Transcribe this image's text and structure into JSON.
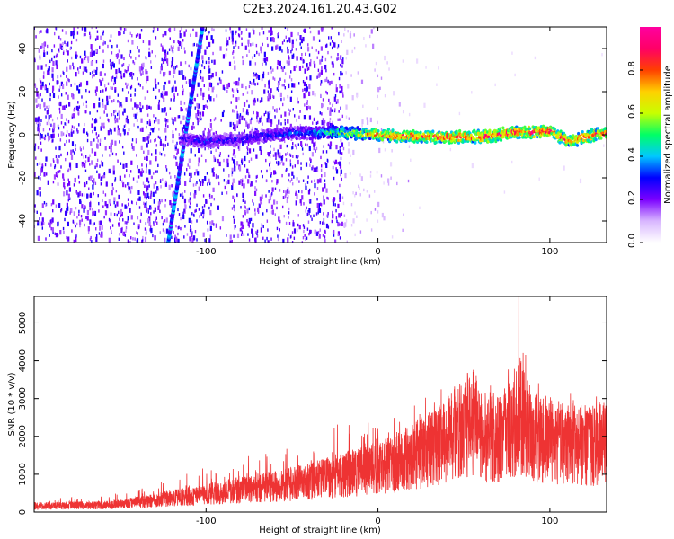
{
  "title": "C2E3.2024.161.20.43.G02",
  "chart_data": [
    {
      "type": "heatmap",
      "xlabel": "Height of straight line (km)",
      "ylabel": "Frequency (Hz)",
      "xlim": [
        -200,
        133
      ],
      "ylim": [
        -50,
        50
      ],
      "xticks": [
        -100,
        0,
        100
      ],
      "yticks": [
        -40,
        -20,
        0,
        20,
        40
      ],
      "colorbar": {
        "label": "Normalized spectral amplitude",
        "range": [
          0,
          1
        ],
        "ticks": [
          "0.0",
          "0.2",
          "0.4",
          "0.6",
          "0.8"
        ],
        "colormap": [
          "#ffffff",
          "#d8b6ff",
          "#7b00ff",
          "#0000ff",
          "#00c8ff",
          "#00ff66",
          "#c8ff00",
          "#ffd000",
          "#ff4000",
          "#ff0066",
          "#ff00a0"
        ]
      },
      "features": {
        "noise_region_km": [
          -200,
          -20
        ],
        "steep_streak": {
          "x_at_ymin": -122,
          "x_at_ymax": -102,
          "amplitude": 0.35
        },
        "ridge": [
          {
            "x": -115,
            "y": -2,
            "amp": 0.25
          },
          {
            "x": -100,
            "y": -3,
            "amp": 0.3
          },
          {
            "x": -80,
            "y": -2,
            "amp": 0.25
          },
          {
            "x": -60,
            "y": 0,
            "amp": 0.3
          },
          {
            "x": -40,
            "y": 1,
            "amp": 0.35
          },
          {
            "x": -20,
            "y": 1,
            "amp": 0.55
          },
          {
            "x": 0,
            "y": 0,
            "amp": 0.75
          },
          {
            "x": 20,
            "y": -1,
            "amp": 0.8
          },
          {
            "x": 40,
            "y": -1,
            "amp": 0.8
          },
          {
            "x": 60,
            "y": -1,
            "amp": 0.82
          },
          {
            "x": 80,
            "y": 1,
            "amp": 0.85
          },
          {
            "x": 100,
            "y": 2,
            "amp": 0.85
          },
          {
            "x": 110,
            "y": -3,
            "amp": 0.8
          },
          {
            "x": 133,
            "y": 1,
            "amp": 0.8
          }
        ]
      }
    },
    {
      "type": "line",
      "xlabel": "Height of straight line (km)",
      "ylabel": "SNR (10 * v/v)",
      "xlim": [
        -200,
        133
      ],
      "ylim": [
        0,
        5700
      ],
      "xticks": [
        -100,
        0,
        100
      ],
      "yticks": [
        0,
        1000,
        2000,
        3000,
        4000,
        5000
      ],
      "color": "#ee3333",
      "envelope": {
        "x": [
          -200,
          -160,
          -140,
          -120,
          -100,
          -80,
          -60,
          -40,
          -20,
          0,
          20,
          40,
          50,
          55,
          60,
          70,
          80,
          82,
          90,
          100,
          110,
          120,
          133
        ],
        "mean": [
          180,
          200,
          280,
          400,
          520,
          650,
          750,
          900,
          1100,
          1300,
          1600,
          2100,
          2450,
          2700,
          2250,
          2150,
          2500,
          2900,
          2200,
          2100,
          2000,
          1950,
          2000
        ],
        "peak": [
          380,
          420,
          600,
          900,
          1200,
          1450,
          1700,
          1700,
          2600,
          2400,
          3000,
          3300,
          3800,
          3900,
          3200,
          3500,
          4500,
          5700,
          4000,
          3300,
          3300,
          3100,
          3100
        ]
      }
    }
  ]
}
